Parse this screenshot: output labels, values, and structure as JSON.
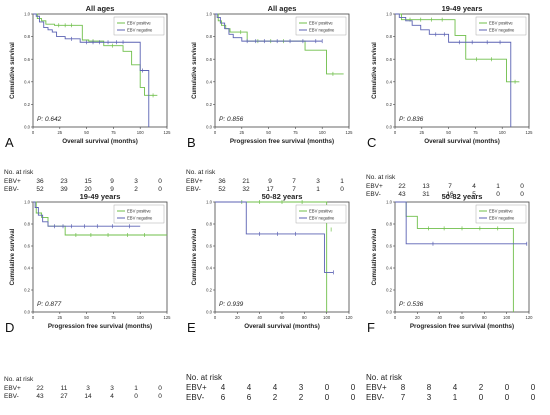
{
  "chart_data": [
    {
      "type": "line",
      "letter": "A",
      "title": "All ages",
      "xlabel": "Overall survival (months)",
      "ylabel": "Cumulative survival",
      "xlim": [
        0,
        125
      ],
      "ylim": [
        0,
        1.0
      ],
      "xticks": [
        "0",
        "25",
        "50",
        "75",
        "100",
        "125"
      ],
      "yticks": [
        "0.0",
        "0.2",
        "0.4",
        "0.6",
        "0.8",
        "1.0"
      ],
      "legend": "top-right",
      "pvalue": "P: 0.642",
      "series": [
        {
          "name": "EBV positive",
          "color": "#6fbf4a",
          "x": [
            0,
            4,
            8,
            12,
            20,
            40,
            46,
            52,
            62,
            66,
            84,
            92,
            100,
            104,
            108,
            116
          ],
          "y": [
            1.0,
            0.96,
            0.94,
            0.91,
            0.9,
            0.9,
            0.77,
            0.76,
            0.76,
            0.72,
            0.67,
            0.55,
            0.35,
            0.28,
            0.28,
            0.28
          ],
          "censored": [
            [
              24,
              0.9
            ],
            [
              30,
              0.9
            ],
            [
              36,
              0.9
            ],
            [
              56,
              0.76
            ],
            [
              74,
              0.72
            ],
            [
              112,
              0.28
            ]
          ]
        },
        {
          "name": "EBV negative",
          "color": "#5b62b3",
          "x": [
            0,
            3,
            6,
            10,
            14,
            18,
            22,
            30,
            44,
            90,
            100,
            104,
            108,
            108
          ],
          "y": [
            1.0,
            0.98,
            0.93,
            0.88,
            0.86,
            0.84,
            0.8,
            0.78,
            0.75,
            0.75,
            0.5,
            0.5,
            0.5,
            0.0
          ],
          "censored": [
            [
              36,
              0.78
            ],
            [
              50,
              0.75
            ],
            [
              56,
              0.75
            ],
            [
              62,
              0.75
            ],
            [
              70,
              0.75
            ],
            [
              78,
              0.75
            ],
            [
              84,
              0.75
            ],
            [
              102,
              0.5
            ]
          ]
        }
      ]
    },
    {
      "type": "line",
      "letter": "B",
      "title": "All ages",
      "xlabel": "Progression free survival (months)",
      "ylabel": "Cumulative survival",
      "xlim": [
        0,
        125
      ],
      "ylim": [
        0,
        1.0
      ],
      "xticks": [
        "0",
        "25",
        "50",
        "75",
        "100",
        "125"
      ],
      "yticks": [
        "0.0",
        "0.2",
        "0.4",
        "0.6",
        "0.8",
        "1.0"
      ],
      "legend": "top-right",
      "pvalue": "P: 0.856",
      "series": [
        {
          "name": "EBV positive",
          "color": "#6fbf4a",
          "x": [
            0,
            3,
            6,
            10,
            14,
            20,
            30,
            76,
            84,
            96,
            104,
            112,
            120
          ],
          "y": [
            1.0,
            0.94,
            0.9,
            0.87,
            0.84,
            0.84,
            0.76,
            0.76,
            0.68,
            0.68,
            0.47,
            0.47,
            0.47
          ],
          "censored": [
            [
              24,
              0.84
            ],
            [
              40,
              0.76
            ],
            [
              52,
              0.76
            ],
            [
              64,
              0.76
            ],
            [
              110,
              0.47
            ]
          ]
        },
        {
          "name": "EBV negative",
          "color": "#5b62b3",
          "x": [
            0,
            2,
            5,
            9,
            13,
            17,
            25,
            100
          ],
          "y": [
            1.0,
            0.97,
            0.92,
            0.87,
            0.82,
            0.79,
            0.76,
            0.76
          ],
          "censored": [
            [
              30,
              0.76
            ],
            [
              38,
              0.76
            ],
            [
              46,
              0.76
            ],
            [
              58,
              0.76
            ],
            [
              70,
              0.76
            ],
            [
              82,
              0.76
            ],
            [
              94,
              0.76
            ],
            [
              100,
              0.76
            ]
          ]
        }
      ]
    },
    {
      "type": "line",
      "letter": "C",
      "title": "19-49 years",
      "xlabel": "Overall survival (months)",
      "ylabel": "Cumulative survival",
      "xlim": [
        0,
        125
      ],
      "ylim": [
        0,
        1.0
      ],
      "xticks": [
        "0",
        "25",
        "50",
        "75",
        "100",
        "125"
      ],
      "yticks": [
        "0.0",
        "0.2",
        "0.4",
        "0.6",
        "0.8",
        "1.0"
      ],
      "legend": "top-right",
      "pvalue": "P: 0.836",
      "series": [
        {
          "name": "EBV positive",
          "color": "#6fbf4a",
          "x": [
            0,
            6,
            56,
            66,
            104,
            116
          ],
          "y": [
            1.0,
            0.95,
            0.81,
            0.6,
            0.4,
            0.4
          ],
          "censored": [
            [
              14,
              0.95
            ],
            [
              24,
              0.95
            ],
            [
              34,
              0.95
            ],
            [
              44,
              0.95
            ],
            [
              76,
              0.6
            ],
            [
              90,
              0.6
            ],
            [
              112,
              0.4
            ]
          ]
        },
        {
          "name": "EBV negative",
          "color": "#5b62b3",
          "x": [
            0,
            4,
            10,
            16,
            24,
            32,
            50,
            104,
            108,
            108
          ],
          "y": [
            1.0,
            0.97,
            0.94,
            0.9,
            0.86,
            0.82,
            0.75,
            0.75,
            0.75,
            0.0
          ],
          "censored": [
            [
              38,
              0.82
            ],
            [
              46,
              0.82
            ],
            [
              60,
              0.75
            ],
            [
              72,
              0.75
            ],
            [
              86,
              0.75
            ],
            [
              98,
              0.75
            ]
          ]
        }
      ]
    },
    {
      "type": "line",
      "letter": "D",
      "title": "19-49 years",
      "xlabel": "Progression free survival (months)",
      "ylabel": "Cumulative survival",
      "xlim": [
        0,
        125
      ],
      "ylim": [
        0,
        1.0
      ],
      "xticks": [
        "0",
        "25",
        "50",
        "75",
        "100",
        "125"
      ],
      "yticks": [
        "0.0",
        "0.2",
        "0.4",
        "0.6",
        "0.8",
        "1.0"
      ],
      "legend": "top-right",
      "pvalue": "P: 0.877",
      "series": [
        {
          "name": "EBV positive",
          "color": "#6fbf4a",
          "x": [
            0,
            3,
            8,
            14,
            30,
            125
          ],
          "y": [
            1.0,
            0.9,
            0.86,
            0.78,
            0.7,
            0.7
          ],
          "censored": [
            [
              40,
              0.7
            ],
            [
              54,
              0.7
            ],
            [
              70,
              0.7
            ],
            [
              88,
              0.7
            ],
            [
              104,
              0.7
            ]
          ]
        },
        {
          "name": "EBV negative",
          "color": "#5b62b3",
          "x": [
            0,
            2,
            5,
            9,
            14,
            100
          ],
          "y": [
            1.0,
            0.95,
            0.88,
            0.82,
            0.78,
            0.78
          ],
          "censored": [
            [
              20,
              0.78
            ],
            [
              28,
              0.78
            ],
            [
              36,
              0.78
            ],
            [
              48,
              0.78
            ],
            [
              60,
              0.78
            ],
            [
              74,
              0.78
            ],
            [
              90,
              0.78
            ]
          ]
        }
      ]
    },
    {
      "type": "line",
      "letter": "E",
      "title": "50-82 years",
      "xlabel": "Overall survival (months)",
      "ylabel": "Cumulative survival",
      "xlim": [
        0,
        120
      ],
      "ylim": [
        0,
        1.0
      ],
      "xticks": [
        "0",
        "20",
        "40",
        "60",
        "80",
        "100",
        "120"
      ],
      "yticks": [
        "0.0",
        "0.2",
        "0.4",
        "0.6",
        "0.8",
        "1.0"
      ],
      "legend": "top-right",
      "pvalue": "P: 0.939",
      "series": [
        {
          "name": "EBV positive",
          "color": "#6fbf4a",
          "x": [
            0,
            88,
            100,
            100
          ],
          "y": [
            1.0,
            1.0,
            0.75,
            0.0
          ],
          "censored": [
            [
              24,
              1.0
            ],
            [
              40,
              1.0
            ],
            [
              60,
              1.0
            ],
            [
              78,
              1.0
            ],
            [
              104,
              0.75
            ]
          ]
        },
        {
          "name": "EBV negative",
          "color": "#5b62b3",
          "x": [
            0,
            28,
            88,
            98,
            106
          ],
          "y": [
            1.0,
            0.71,
            0.71,
            0.36,
            0.36
          ],
          "censored": [
            [
              40,
              0.71
            ],
            [
              56,
              0.71
            ],
            [
              72,
              0.71
            ],
            [
              106,
              0.36
            ]
          ]
        }
      ]
    },
    {
      "type": "line",
      "letter": "F",
      "title": "50-82 years",
      "xlabel": "Progression free survival (months)",
      "ylabel": "Cumulative survival",
      "xlim": [
        0,
        120
      ],
      "ylim": [
        0,
        1.0
      ],
      "xticks": [
        "0",
        "20",
        "40",
        "60",
        "80",
        "100",
        "120"
      ],
      "yticks": [
        "0.0",
        "0.2",
        "0.4",
        "0.6",
        "0.8",
        "1.0"
      ],
      "legend": "top-right",
      "pvalue": "P: 0.536",
      "series": [
        {
          "name": "EBV positive",
          "color": "#6fbf4a",
          "x": [
            0,
            4,
            10,
            20,
            106,
            106
          ],
          "y": [
            1.0,
            1.0,
            0.87,
            0.76,
            0.76,
            0.0
          ],
          "censored": [
            [
              30,
              0.76
            ],
            [
              44,
              0.76
            ],
            [
              60,
              0.76
            ],
            [
              76,
              0.76
            ],
            [
              92,
              0.76
            ]
          ]
        },
        {
          "name": "EBV negative",
          "color": "#5b62b3",
          "x": [
            0,
            10,
            118
          ],
          "y": [
            1.0,
            0.62,
            0.62
          ],
          "censored": [
            [
              34,
              0.62
            ],
            [
              118,
              0.62
            ]
          ]
        }
      ]
    }
  ],
  "risk_tables": [
    {
      "title": "No. at risk",
      "rows": [
        {
          "label": "EBV+",
          "values": [
            "36",
            "23",
            "15",
            "9",
            "3",
            "0"
          ]
        },
        {
          "label": "EBV-",
          "values": [
            "52",
            "39",
            "20",
            "9",
            "2",
            "0"
          ]
        }
      ]
    },
    {
      "title": "No. at risk",
      "rows": [
        {
          "label": "EBV+",
          "values": [
            "36",
            "21",
            "9",
            "7",
            "3",
            "1"
          ]
        },
        {
          "label": "EBV-",
          "values": [
            "52",
            "32",
            "17",
            "7",
            "1",
            "0"
          ]
        }
      ]
    },
    {
      "title": "No. at risk",
      "rows": [
        {
          "label": "EBV+",
          "values": [
            "22",
            "13",
            "7",
            "4",
            "1",
            "0"
          ]
        },
        {
          "label": "EBV-",
          "values": [
            "43",
            "31",
            "16",
            "5",
            "0",
            "0"
          ]
        }
      ]
    },
    {
      "title": "No. at risk",
      "rows": [
        {
          "label": "EBV+",
          "values": [
            "22",
            "11",
            "3",
            "3",
            "1",
            "0"
          ]
        },
        {
          "label": "EBV-",
          "values": [
            "43",
            "27",
            "14",
            "4",
            "0",
            "0"
          ]
        }
      ]
    },
    {
      "title": "No. at risk",
      "rows": [
        {
          "label": "EBV+",
          "values": [
            "4",
            "4",
            "4",
            "3",
            "0",
            "0"
          ]
        },
        {
          "label": "EBV-",
          "values": [
            "6",
            "6",
            "2",
            "2",
            "0",
            "0"
          ]
        }
      ]
    },
    {
      "title": "No. at risk",
      "rows": [
        {
          "label": "EBV+",
          "values": [
            "8",
            "8",
            "4",
            "2",
            "0",
            "0"
          ]
        },
        {
          "label": "EBV-",
          "values": [
            "7",
            "3",
            "1",
            "0",
            "0",
            "0"
          ]
        }
      ]
    }
  ]
}
